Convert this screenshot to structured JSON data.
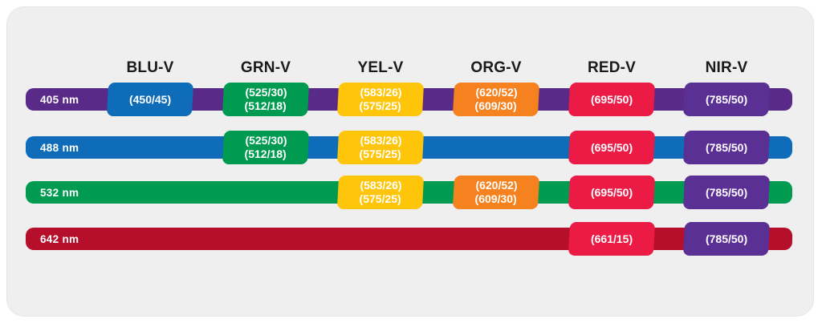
{
  "colors": {
    "panel_bg": "#efefef",
    "violet_laser": "#5a2a89",
    "blue": "#0f6cb8",
    "green": "#009b50",
    "yellow": "#fec50a",
    "orange": "#f5821f",
    "red": "#ec1b45",
    "dark_red_laser": "#b60f2c",
    "nir_purple": "#5b3095",
    "header_text": "#1a1a1a",
    "box_text": "#ffffff"
  },
  "detector_headers": [
    "BLU-V",
    "GRN-V",
    "YEL-V",
    "ORG-V",
    "RED-V",
    "NIR-V"
  ],
  "rows": [
    {
      "laser": "405 nm",
      "boxes": {
        "blu": {
          "line1": "(450/45)"
        },
        "grn": {
          "line1": "(525/30)",
          "line2": "(512/18)"
        },
        "yel": {
          "line1": "(583/26)",
          "line2": "(575/25)"
        },
        "org": {
          "line1": "(620/52)",
          "line2": "(609/30)"
        },
        "red": {
          "line1": "(695/50)"
        },
        "nir": {
          "line1": "(785/50)"
        }
      }
    },
    {
      "laser": "488 nm",
      "boxes": {
        "grn": {
          "line1": "(525/30)",
          "line2": "(512/18)"
        },
        "yel": {
          "line1": "(583/26)",
          "line2": "(575/25)"
        },
        "red": {
          "line1": "(695/50)"
        },
        "nir": {
          "line1": "(785/50)"
        }
      }
    },
    {
      "laser": "532 nm",
      "boxes": {
        "yel": {
          "line1": "(583/26)",
          "line2": "(575/25)"
        },
        "org": {
          "line1": "(620/52)",
          "line2": "(609/30)"
        },
        "red": {
          "line1": "(695/50)"
        },
        "nir": {
          "line1": "(785/50)"
        }
      }
    },
    {
      "laser": "642 nm",
      "boxes": {
        "red": {
          "line1": "(661/15)"
        },
        "nir": {
          "line1": "(785/50)"
        }
      }
    }
  ]
}
